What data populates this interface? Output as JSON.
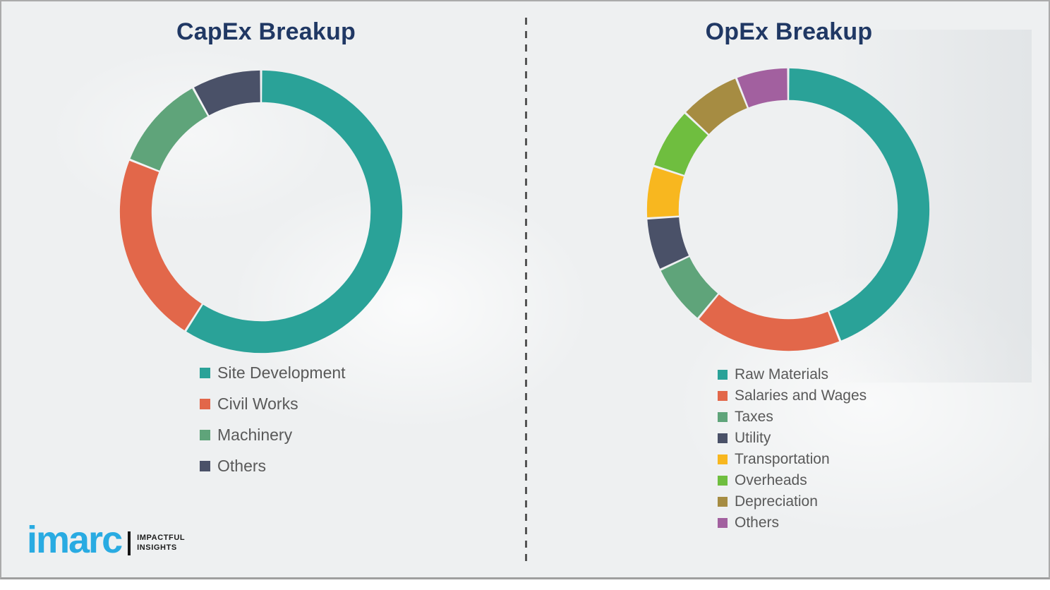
{
  "chart_data": [
    {
      "type": "pie",
      "subtype": "donut",
      "title": "CapEx Breakup",
      "categories": [
        "Site Development",
        "Civil Works",
        "Machinery",
        "Others"
      ],
      "values": [
        59,
        22,
        11,
        8
      ],
      "unit": "%",
      "values_note": "estimated from arc angles; no numeric labels shown in image",
      "colors": [
        "#2aa298",
        "#e2674a",
        "#5fa47a",
        "#4a5168"
      ],
      "start_angle_deg": 0,
      "direction": "clockwise",
      "legend_position": "bottom"
    },
    {
      "type": "pie",
      "subtype": "donut",
      "title": "OpEx Breakup",
      "categories": [
        "Raw Materials",
        "Salaries and Wages",
        "Taxes",
        "Utility",
        "Transportation",
        "Overheads",
        "Depreciation",
        "Others"
      ],
      "values": [
        44,
        17,
        7,
        6,
        6,
        7,
        7,
        6
      ],
      "unit": "%",
      "values_note": "estimated from arc angles; no numeric labels shown in image",
      "colors": [
        "#2aa298",
        "#e2674a",
        "#5fa47a",
        "#4a5168",
        "#f8b71f",
        "#6fbe3f",
        "#a68c42",
        "#a2609f"
      ],
      "start_angle_deg": 0,
      "direction": "clockwise",
      "legend_position": "bottom"
    }
  ],
  "branding": {
    "wordmark": "imarc",
    "wordmark_color": "#29abe2",
    "tagline": [
      "IMPACTFUL",
      "INSIGHTS"
    ]
  },
  "style": {
    "title_color": "#203864",
    "legend_text_color": "#595959",
    "divider_color": "#555555",
    "background_color": "#eef0f1"
  }
}
